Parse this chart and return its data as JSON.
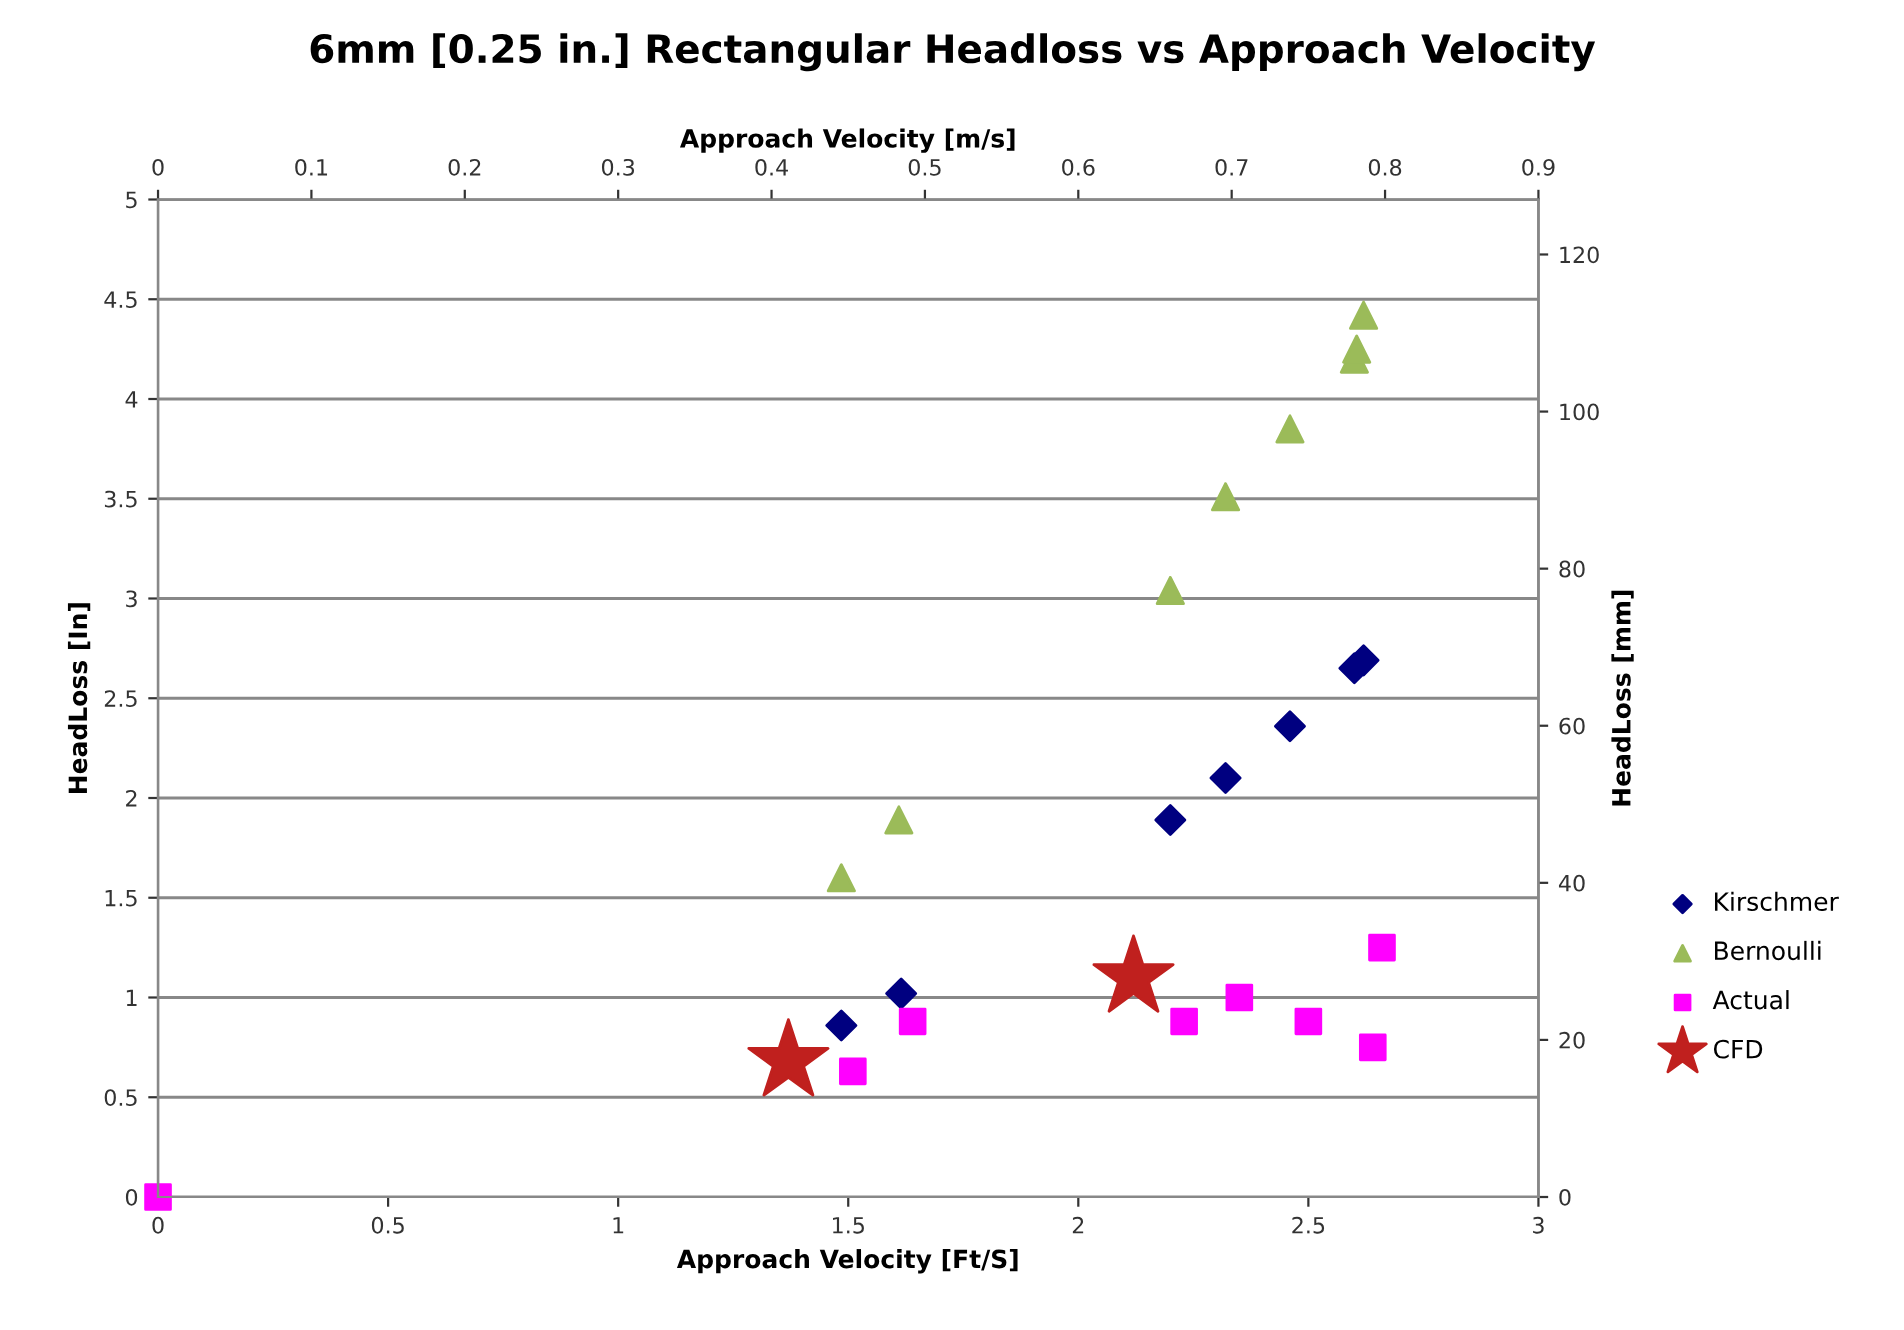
{
  "chart_data": {
    "type": "scatter",
    "title": "6mm [0.25 in.] Rectangular Headloss vs Approach Velocity",
    "xlabel": "Approach Velocity [Ft/S]",
    "x2label": "Approach Velocity [m/s]",
    "ylabel": "HeadLoss [In]",
    "y2label": "HeadLoss [mm]",
    "xlim": [
      0,
      3
    ],
    "xticks": [
      0,
      0.5,
      1,
      1.5,
      2,
      2.5,
      3
    ],
    "x2lim": [
      0,
      0.9
    ],
    "x2ticks": [
      0,
      0.1,
      0.2,
      0.3,
      0.4,
      0.5,
      0.6,
      0.7,
      0.8,
      0.9
    ],
    "ylim": [
      0,
      5
    ],
    "yticks": [
      0,
      0.5,
      1,
      1.5,
      2,
      2.5,
      3,
      3.5,
      4,
      4.5,
      5
    ],
    "y2lim": [
      0,
      127
    ],
    "y2ticks": [
      0,
      20,
      40,
      60,
      80,
      100,
      120
    ],
    "grid": "y",
    "legend": "right",
    "series": [
      {
        "name": "Kirschmer",
        "color": "#000080",
        "marker": "diamond",
        "x": [
          1.485,
          1.615,
          2.2,
          2.32,
          2.46,
          2.6,
          2.62
        ],
        "values": [
          0.86,
          1.02,
          1.89,
          2.1,
          2.36,
          2.65,
          2.69
        ]
      },
      {
        "name": "Bernoulli",
        "color": "#9bbb59",
        "marker": "triangle",
        "x": [
          1.485,
          1.61,
          2.2,
          2.32,
          2.46,
          2.6,
          2.605,
          2.62
        ],
        "values": [
          1.6,
          1.89,
          3.04,
          3.51,
          3.85,
          4.2,
          4.25,
          4.42
        ]
      },
      {
        "name": "Actual",
        "color": "#ff00ff",
        "marker": "square",
        "x": [
          0,
          1.51,
          1.64,
          2.23,
          2.35,
          2.5,
          2.64,
          2.66
        ],
        "values": [
          0,
          0.63,
          0.88,
          0.88,
          1.0,
          0.88,
          0.75,
          1.25
        ]
      },
      {
        "name": "CFD",
        "color": "#c0201e",
        "marker": "star",
        "x": [
          1.37,
          2.12
        ],
        "values": [
          0.68,
          1.1
        ]
      }
    ]
  }
}
